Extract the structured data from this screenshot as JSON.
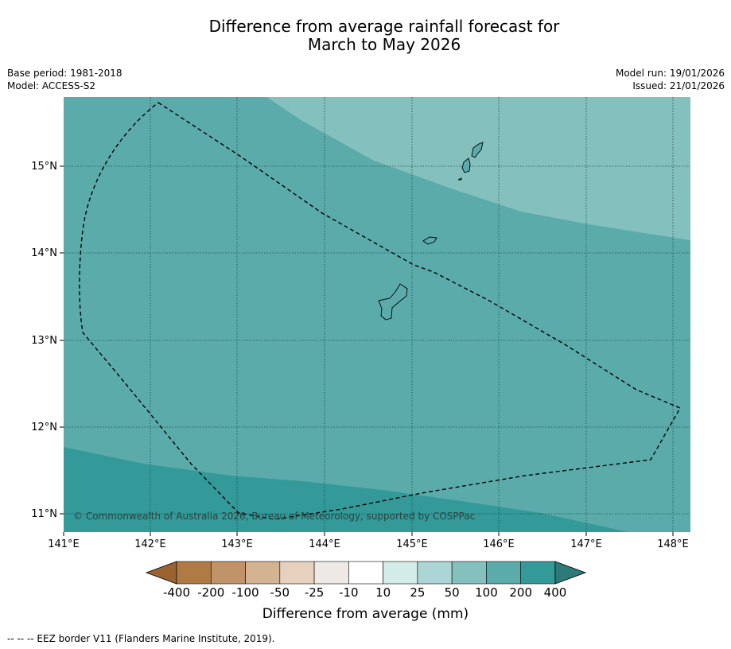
{
  "title": {
    "line1": "Difference from average rainfall forecast for",
    "line2": "March to May 2026"
  },
  "meta": {
    "base_period": "Base period: 1981-2018",
    "model": "Model: ACCESS-S2",
    "model_run": "Model run: 19/01/2026",
    "issued": "Issued: 21/01/2026"
  },
  "map": {
    "lon_labels": [
      "141°E",
      "142°E",
      "143°E",
      "144°E",
      "145°E",
      "146°E",
      "147°E",
      "148°E"
    ],
    "lat_labels": [
      "15°N",
      "14°N",
      "13°N",
      "12°N",
      "11°N"
    ],
    "copyright": "© Commonwealth of Australia 2026, Bureau of Meteorology, supported by COSPPac"
  },
  "colorbar": {
    "tick_labels": [
      "-400",
      "-200",
      "-100",
      "-50",
      "-25",
      "-10",
      "10",
      "25",
      "50",
      "100",
      "200",
      "400"
    ],
    "colors": [
      "#9c6332",
      "#b07a45",
      "#c19369",
      "#d4b393",
      "#e6d0be",
      "#efe9e5",
      "#ffffff",
      "#d3ecea",
      "#abd6d5",
      "#84c0be",
      "#5babab",
      "#339999",
      "#2e7a78"
    ],
    "title": "Difference from average (mm)"
  },
  "legend_footer": "--  --  -- EEZ border V11 (Flanders Marine Institute, 2019).",
  "colors": {
    "zone_25_50": "#84c0be",
    "zone_50_100": "#5babab",
    "zone_100_200": "#339999"
  }
}
